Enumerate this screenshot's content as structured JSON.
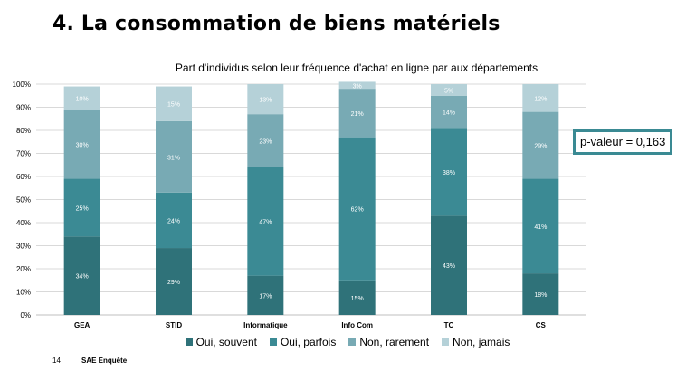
{
  "slide": {
    "title": "4. La consommation de biens matériels",
    "page_number": "14",
    "footer": "SAE Enquête"
  },
  "pvalue": "p-valeur = 0,163",
  "chart_data": {
    "type": "bar",
    "stacked": true,
    "percent": true,
    "title": "Part d'individus selon leur fréquence d'achat en ligne par aux départements",
    "categories": [
      "GEA",
      "STID",
      "Informatique",
      "Info Com",
      "TC",
      "CS"
    ],
    "ylim": [
      0,
      100
    ],
    "yticks": [
      "0%",
      "10%",
      "20%",
      "30%",
      "40%",
      "50%",
      "60%",
      "70%",
      "80%",
      "90%",
      "100%"
    ],
    "grid": true,
    "legend_position": "bottom",
    "series": [
      {
        "name": "Oui, souvent",
        "color": "#2f7279",
        "values": [
          34,
          29,
          17,
          15,
          43,
          18
        ],
        "labels": [
          "34%",
          "29%",
          "17%",
          "15%",
          "43%",
          "18%"
        ]
      },
      {
        "name": "Oui, parfois",
        "color": "#3b8a94",
        "values": [
          25,
          24,
          47,
          62,
          38,
          41
        ],
        "labels": [
          "25%",
          "24%",
          "47%",
          "62%",
          "38%",
          "41%"
        ]
      },
      {
        "name": "Non, rarement",
        "color": "#78aab4",
        "values": [
          30,
          31,
          23,
          21,
          14,
          29
        ],
        "labels": [
          "30%",
          "31%",
          "23%",
          "21%",
          "14%",
          "29%"
        ]
      },
      {
        "name": "Non, jamais",
        "color": "#b5d1d8",
        "values": [
          10,
          15,
          13,
          3,
          5,
          12
        ],
        "labels": [
          "10%",
          "15%",
          "13%",
          "3%",
          "5%",
          "12%"
        ]
      }
    ]
  }
}
